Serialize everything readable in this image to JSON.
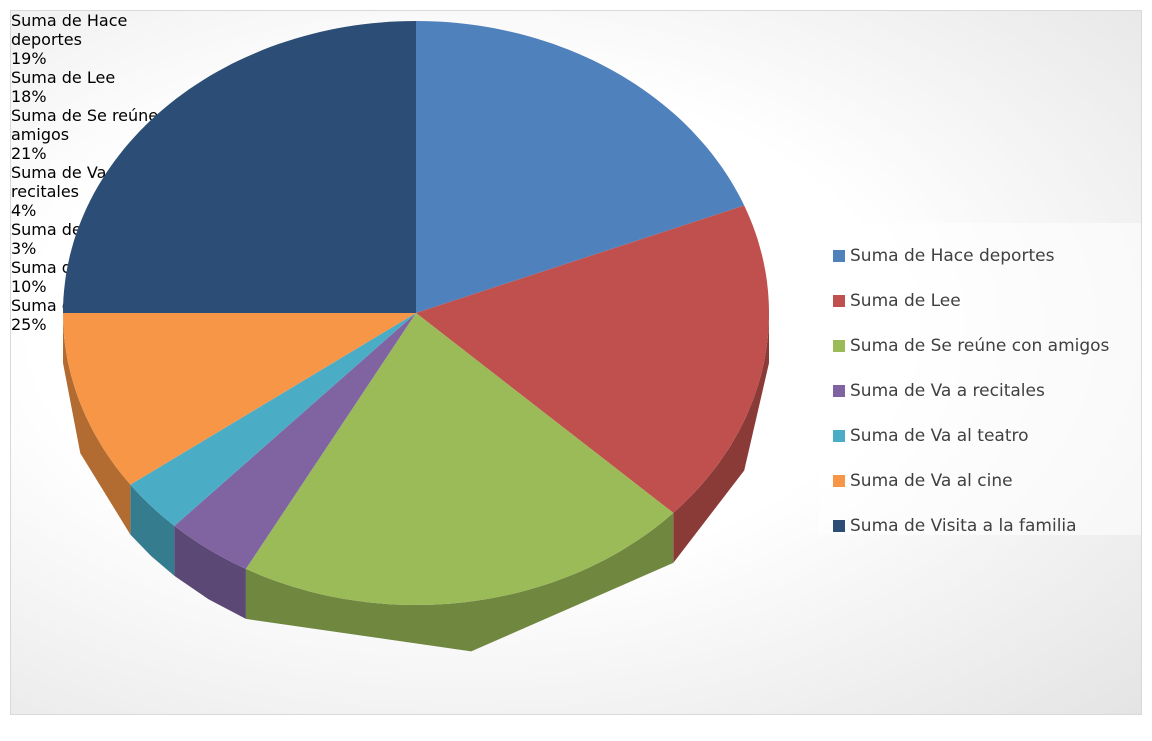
{
  "chart_data": {
    "type": "pie",
    "categories": [
      "Suma de Hace deportes",
      "Suma de Lee",
      "Suma de Se reúne con amigos",
      "Suma de Va a recitales",
      "Suma de Va al teatro",
      "Suma de Va al cine",
      "Suma de Visita a la familia"
    ],
    "values": [
      19,
      18,
      21,
      4,
      3,
      10,
      25
    ],
    "value_labels": [
      "19%",
      "18%",
      "21%",
      "4%",
      "3%",
      "10%",
      "25%"
    ],
    "colors": [
      "#4f81bd",
      "#c0504d",
      "#9bbb59",
      "#8064a2",
      "#4bacc6",
      "#f79646",
      "#2c4d75"
    ],
    "legend": "right"
  }
}
